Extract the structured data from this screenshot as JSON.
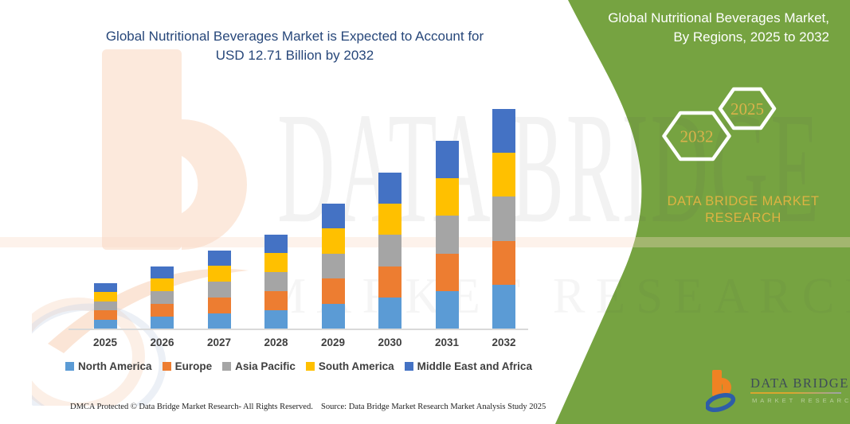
{
  "chart_title": {
    "line1": "Global Nutritional Beverages Market is Expected to Account for",
    "line2": "USD 12.71 Billion by 2032"
  },
  "chart_data": {
    "type": "bar",
    "stacked": true,
    "title": "Global Nutritional Beverages Market is Expected to Account for USD 12.71 Billion by 2032",
    "categories": [
      "2025",
      "2026",
      "2027",
      "2028",
      "2029",
      "2030",
      "2031",
      "2032"
    ],
    "series": [
      {
        "name": "North America",
        "color": "#5B9BD5",
        "values": [
          11.6,
          15.8,
          19.8,
          23.8,
          31.6,
          39.4,
          47.4,
          55.4
        ]
      },
      {
        "name": "Europe",
        "color": "#ED7D31",
        "values": [
          11.6,
          15.8,
          19.8,
          23.8,
          31.6,
          39.4,
          47.4,
          55.4
        ]
      },
      {
        "name": "Asia Pacific",
        "color": "#A5A5A5",
        "values": [
          11.6,
          15.8,
          19.8,
          23.8,
          31.6,
          39.4,
          47.4,
          55.4
        ]
      },
      {
        "name": "South America",
        "color": "#FFC000",
        "values": [
          11.6,
          15.8,
          19.8,
          23.8,
          31.6,
          39.4,
          47.4,
          55.4
        ]
      },
      {
        "name": "Middle East and Africa",
        "color": "#4472C4",
        "values": [
          11.6,
          15.8,
          19.8,
          23.8,
          31.6,
          39.4,
          47.4,
          55.4
        ]
      }
    ],
    "stack_order_bottom_to_top": [
      "North America",
      "Europe",
      "Asia Pacific",
      "South America",
      "Middle East and Africa"
    ],
    "totals_relative": [
      58,
      79,
      99,
      119,
      158,
      197,
      237,
      277
    ],
    "value_unit": "relative pixel height (no value axis shown in figure)",
    "xlabel": "",
    "ylabel": "",
    "grid": false,
    "legend_position": "bottom",
    "axis_labels_shown": {
      "x": true,
      "y": false
    },
    "axis_line_color": "#D9D9D9"
  },
  "side_panel": {
    "panel_color": "#76A341",
    "title_line1": "Global Nutritional Beverages Market,",
    "title_line2": "By Regions, 2025 to 2032",
    "hexagons": [
      {
        "label": "2032"
      },
      {
        "label": "2025"
      }
    ],
    "hexagon_text_color": "#D9B24B",
    "brand_line1": "DATA BRIDGE MARKET",
    "brand_line2": "RESEARCH",
    "brand_color": "#DDB342"
  },
  "logo": {
    "title": "DATA BRIDGE",
    "subtitle": "MARKET RESEARCH",
    "icon": "data-bridge-b-swoosh-icon",
    "orange": "#F08223",
    "blue": "#2E5DA8"
  },
  "watermark": {
    "line1": "DATA BRIDGE",
    "line2": "MARKET RESEARCH"
  },
  "footer": {
    "left": "DMCA Protected © Data Bridge Market Research-  All Rights Reserved.",
    "right": "Source: Data Bridge Market Research  Market Analysis Study 2025"
  }
}
